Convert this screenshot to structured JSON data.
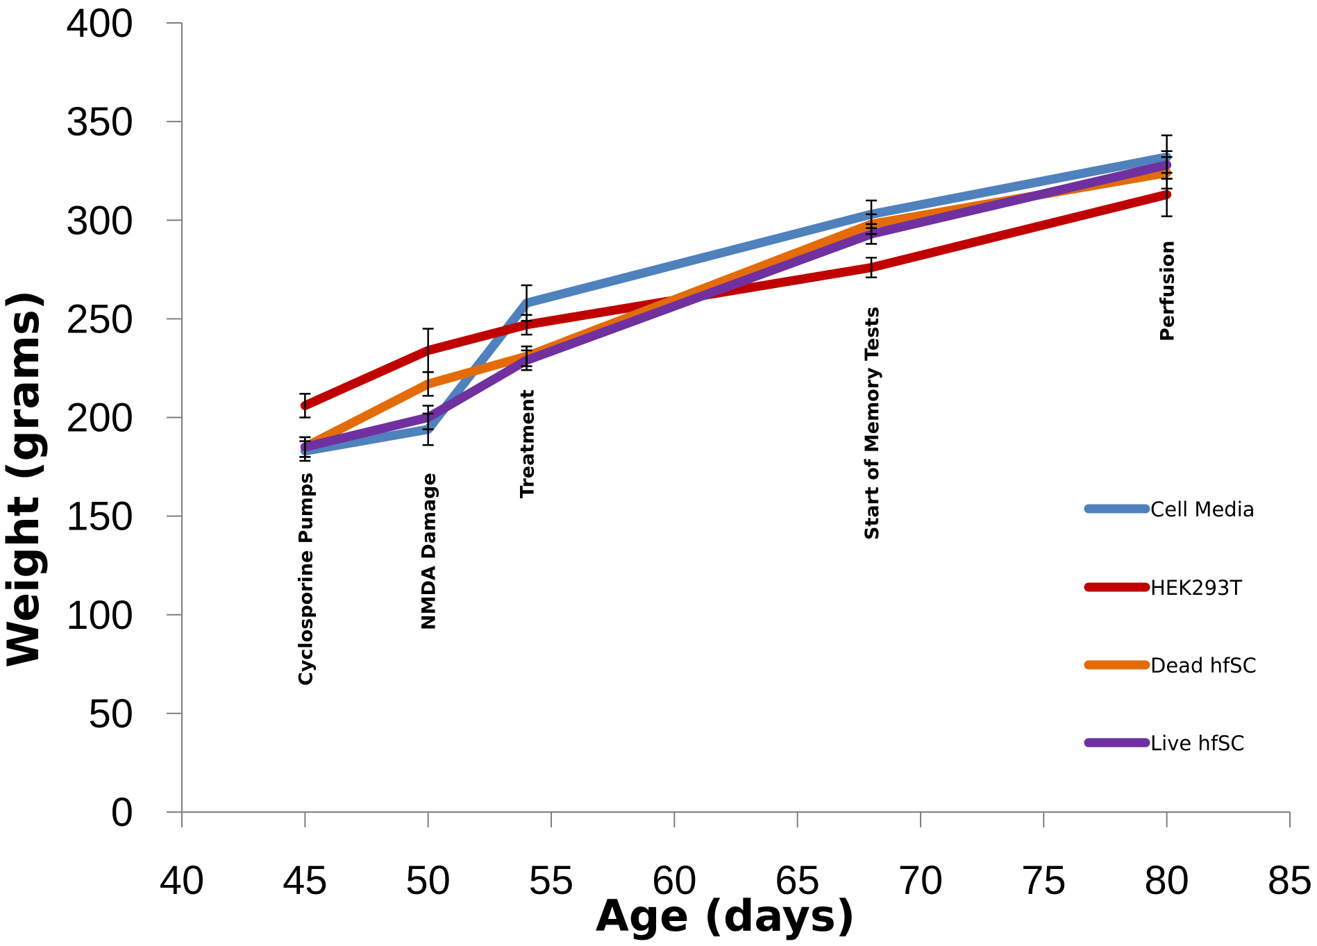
{
  "chart_data": {
    "type": "line",
    "title": "",
    "xlabel": "Age (days)",
    "ylabel": "Weight (grams)",
    "xlim": [
      40,
      85
    ],
    "ylim": [
      0,
      400
    ],
    "xticks": [
      40,
      45,
      50,
      55,
      60,
      65,
      70,
      75,
      80,
      85
    ],
    "yticks": [
      0,
      50,
      100,
      150,
      200,
      250,
      300,
      350,
      400
    ],
    "xtick_labels": [
      "40",
      "45",
      "50",
      "55",
      "60",
      "65",
      "70",
      "75",
      "80",
      "85"
    ],
    "ytick_labels": [
      "0",
      "50",
      "100",
      "150",
      "200",
      "250",
      "300",
      "350",
      "400"
    ],
    "grid": false,
    "legend_position": "right",
    "x": [
      45,
      50,
      54,
      68,
      80
    ],
    "series": [
      {
        "name": "Cell Media",
        "color": "#4f81bd",
        "values": [
          183,
          194,
          258,
          303,
          332
        ],
        "errors": [
          5,
          8,
          9,
          7,
          11
        ]
      },
      {
        "name": "HEK293T",
        "color": "#c00000",
        "values": [
          206,
          234,
          247,
          276,
          313
        ],
        "errors": [
          6,
          11,
          5,
          5,
          11
        ]
      },
      {
        "name": "Dead hfSC",
        "color": "#e36c09",
        "values": [
          185,
          217,
          231,
          298,
          324
        ],
        "errors": [
          5,
          6,
          5,
          5,
          8
        ]
      },
      {
        "name": "Live hfSC",
        "color": "#7030a0",
        "values": [
          185,
          200,
          229,
          293,
          328
        ],
        "errors": [
          5,
          6,
          5,
          5,
          7
        ]
      }
    ],
    "annotations": [
      {
        "text": "Cyclosporine Pumps",
        "x": 45
      },
      {
        "text": "NMDA Damage",
        "x": 50
      },
      {
        "text": "Treatment",
        "x": 54
      },
      {
        "text": "Start of Memory Tests",
        "x": 68
      },
      {
        "text": "Perfusion",
        "x": 80
      }
    ]
  }
}
